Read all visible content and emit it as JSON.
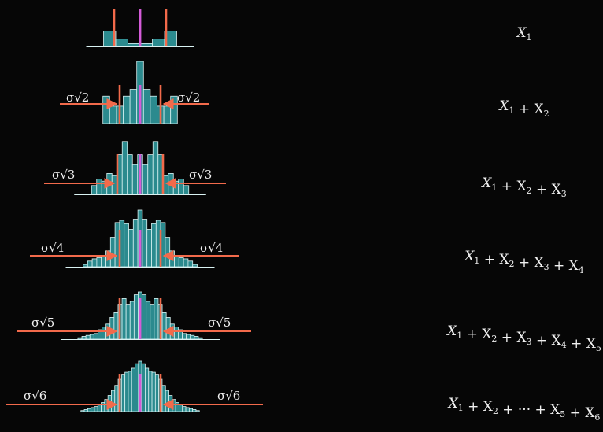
{
  "colors": {
    "bar_fill": "#2b8a8e",
    "bar_edge": "#d9f2f2",
    "mean_line": "#d45bd8",
    "sigma_line": "#f26a4b",
    "arrow": "#f26a4b",
    "background": "#060606"
  },
  "rows": [
    {
      "label": "X_1",
      "sigma_text": "",
      "bars": [
        0.54,
        0.26,
        0.1,
        0.1,
        0.26,
        0.54
      ]
    },
    {
      "label": "X_1+X_2",
      "sigma_text": "σ√2",
      "bars": [
        0.44,
        0.28,
        0.28,
        0.44,
        0.55,
        1.0,
        0.55,
        0.44,
        0.28,
        0.28,
        0.44
      ]
    },
    {
      "label": "X_1+X_2+X_3",
      "sigma_text": "σ√3",
      "bars": [
        0.16,
        0.28,
        0.24,
        0.38,
        0.34,
        0.72,
        0.96,
        0.72,
        0.54,
        0.72,
        0.54,
        0.72,
        0.96,
        0.72,
        0.34,
        0.38,
        0.24,
        0.28,
        0.16
      ]
    },
    {
      "label": "X_1+X_2+X_3+X_4",
      "sigma_text": "σ√4",
      "bars": [
        0.04,
        0.1,
        0.14,
        0.16,
        0.2,
        0.28,
        0.52,
        0.78,
        0.82,
        0.76,
        0.66,
        0.84,
        1.0,
        0.84,
        0.66,
        0.76,
        0.82,
        0.78,
        0.52,
        0.28,
        0.2,
        0.16,
        0.14,
        0.1,
        0.04
      ]
    },
    {
      "label": "X_1+X_2+X_3+X_4+X_5",
      "sigma_text": "σ√5",
      "bars": [
        0.03,
        0.06,
        0.08,
        0.1,
        0.12,
        0.2,
        0.26,
        0.32,
        0.46,
        0.56,
        0.74,
        0.86,
        0.74,
        0.8,
        0.94,
        1.0,
        0.94,
        0.8,
        0.74,
        0.86,
        0.74,
        0.56,
        0.46,
        0.32,
        0.26,
        0.2,
        0.12,
        0.1,
        0.08,
        0.06,
        0.03
      ]
    },
    {
      "label": "X_1+X_2+···+X_5+X_6",
      "sigma_text": "σ√6",
      "bars": [
        0.02,
        0.04,
        0.06,
        0.08,
        0.1,
        0.13,
        0.18,
        0.24,
        0.32,
        0.42,
        0.52,
        0.64,
        0.74,
        0.78,
        0.8,
        0.86,
        0.95,
        1.0,
        0.95,
        0.86,
        0.8,
        0.78,
        0.74,
        0.64,
        0.52,
        0.42,
        0.32,
        0.24,
        0.18,
        0.13,
        0.1,
        0.08,
        0.06,
        0.04,
        0.02
      ]
    }
  ]
}
